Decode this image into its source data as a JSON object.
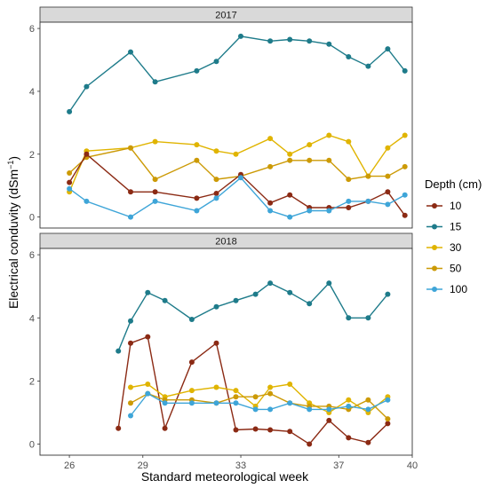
{
  "chart_data": {
    "type": "line",
    "xlabel": "Standard meteorological week",
    "ylabel_main": "Electrical conduvity (dSm",
    "ylabel_sup": "−1",
    "ylabel_close": ")",
    "xlim": [
      24.8,
      40
    ],
    "ylim": [
      -0.35,
      6.2
    ],
    "x_ticks": [
      26,
      29,
      33,
      37,
      40
    ],
    "y_ticks": [
      0,
      2,
      4,
      6
    ],
    "legend": {
      "title": "Depth (cm)",
      "position": "right",
      "entries": [
        "10",
        "15",
        "30",
        "50",
        "100"
      ]
    },
    "colors": {
      "10": "#8b2a14",
      "15": "#1e7b8a",
      "30": "#e0b400",
      "50": "#cc9a06",
      "100": "#3ea5d8"
    },
    "panels": [
      {
        "title": "2017",
        "series": [
          {
            "name": "15",
            "x": [
              26,
              26.7,
              28.5,
              29.5,
              31.2,
              32,
              33,
              34.2,
              35,
              35.8,
              36.6,
              37.4,
              38.2,
              39,
              39.7
            ],
            "y": [
              3.35,
              4.15,
              5.25,
              4.3,
              4.65,
              4.95,
              5.75,
              5.6,
              5.65,
              5.6,
              5.5,
              5.1,
              4.8,
              5.35,
              4.65
            ]
          },
          {
            "name": "30",
            "x": [
              26,
              26.7,
              28.5,
              29.5,
              31.2,
              32,
              32.8,
              34.2,
              35,
              35.8,
              36.6,
              37.4,
              38.2,
              39,
              39.7
            ],
            "y": [
              0.8,
              2.1,
              2.2,
              2.4,
              2.3,
              2.1,
              2.0,
              2.5,
              2.0,
              2.3,
              2.6,
              2.4,
              1.3,
              2.2,
              2.6
            ]
          },
          {
            "name": "50",
            "x": [
              26,
              26.7,
              28.5,
              29.5,
              31.2,
              32,
              33,
              34.2,
              35,
              35.8,
              36.6,
              37.4,
              38.2,
              39,
              39.7
            ],
            "y": [
              1.4,
              1.9,
              2.2,
              1.2,
              1.8,
              1.2,
              1.3,
              1.6,
              1.8,
              1.8,
              1.8,
              1.2,
              1.3,
              1.3,
              1.6
            ]
          },
          {
            "name": "10",
            "x": [
              26,
              26.7,
              28.5,
              29.5,
              31.2,
              32,
              33,
              34.2,
              35,
              35.8,
              36.6,
              37.4,
              38.2,
              39,
              39.7
            ],
            "y": [
              1.1,
              2.0,
              0.8,
              0.8,
              0.6,
              0.75,
              1.35,
              0.45,
              0.7,
              0.3,
              0.3,
              0.3,
              0.5,
              0.8,
              0.05
            ]
          },
          {
            "name": "100",
            "x": [
              26,
              26.7,
              28.5,
              29.5,
              31.2,
              32,
              33,
              34.2,
              35,
              35.8,
              36.6,
              37.4,
              38.2,
              39,
              39.7
            ],
            "y": [
              0.9,
              0.5,
              0.0,
              0.5,
              0.2,
              0.6,
              1.25,
              0.2,
              0.0,
              0.2,
              0.2,
              0.5,
              0.5,
              0.4,
              0.7
            ]
          }
        ]
      },
      {
        "title": "2018",
        "series": [
          {
            "name": "15",
            "x": [
              28,
              28.5,
              29.2,
              29.9,
              31,
              32,
              32.8,
              33.6,
              34.2,
              35,
              35.8,
              36.6,
              37.4,
              38.2,
              39
            ],
            "y": [
              2.95,
              3.9,
              4.8,
              4.55,
              3.95,
              4.35,
              4.55,
              4.75,
              5.1,
              4.8,
              4.45,
              5.1,
              4.0,
              4.0,
              4.75
            ]
          },
          {
            "name": "10",
            "x": [
              28,
              28.5,
              29.2,
              29.9,
              31,
              32,
              32.8,
              33.6,
              34.2,
              35,
              35.8,
              36.6,
              37.4,
              38.2,
              39
            ],
            "y": [
              0.5,
              3.2,
              3.4,
              0.5,
              2.6,
              3.2,
              0.45,
              0.48,
              0.45,
              0.4,
              0.0,
              0.75,
              0.2,
              0.05,
              0.65
            ]
          },
          {
            "name": "30",
            "x": [
              28.5,
              29.2,
              29.9,
              31,
              32,
              32.8,
              33.6,
              34.2,
              35,
              35.8,
              36.6,
              37.4,
              38.2,
              39
            ],
            "y": [
              1.8,
              1.9,
              1.5,
              1.7,
              1.8,
              1.7,
              1.2,
              1.8,
              1.9,
              1.3,
              1.0,
              1.4,
              1.0,
              1.5
            ]
          },
          {
            "name": "50",
            "x": [
              28.5,
              29.2,
              29.9,
              31,
              32,
              32.8,
              33.6,
              34.2,
              35,
              35.8,
              36.6,
              37.4,
              38.2,
              39
            ],
            "y": [
              1.3,
              1.6,
              1.4,
              1.4,
              1.3,
              1.5,
              1.5,
              1.6,
              1.3,
              1.2,
              1.2,
              1.1,
              1.4,
              0.8
            ]
          },
          {
            "name": "100",
            "x": [
              28.5,
              29.2,
              29.9,
              31,
              32,
              32.8,
              33.6,
              34.2,
              35,
              35.8,
              36.6,
              37.4,
              38.2,
              39
            ],
            "y": [
              0.9,
              1.6,
              1.3,
              1.3,
              1.3,
              1.3,
              1.1,
              1.1,
              1.3,
              1.1,
              1.1,
              1.2,
              1.1,
              1.4
            ]
          }
        ]
      }
    ]
  }
}
